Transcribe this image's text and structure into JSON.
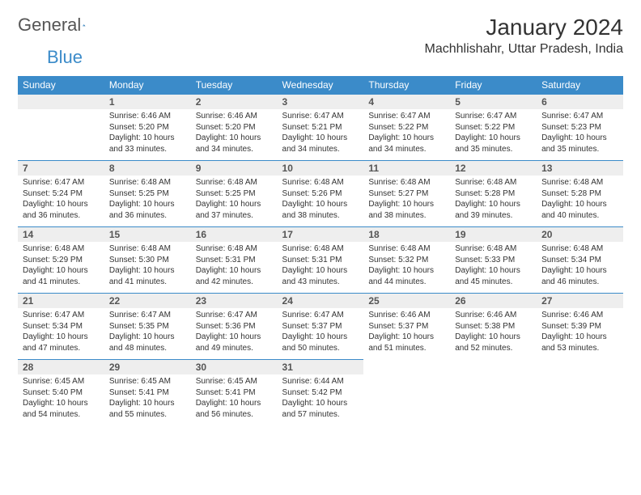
{
  "logo": {
    "text1": "General",
    "text2": "Blue"
  },
  "title": "January 2024",
  "location": "Machhlishahr, Uttar Pradesh, India",
  "colors": {
    "header_bg": "#3b8bc9",
    "header_text": "#ffffff",
    "daynum_bg": "#eeeeee",
    "daynum_text": "#555555",
    "body_text": "#333333",
    "page_bg": "#ffffff",
    "border": "#3b8bc9"
  },
  "typography": {
    "title_fontsize": 28,
    "location_fontsize": 16,
    "weekday_fontsize": 12,
    "daynum_fontsize": 12,
    "cell_fontsize": 10
  },
  "weekdays": [
    "Sunday",
    "Monday",
    "Tuesday",
    "Wednesday",
    "Thursday",
    "Friday",
    "Saturday"
  ],
  "first_weekday_index": 1,
  "days": [
    {
      "n": 1,
      "sunrise": "6:46 AM",
      "sunset": "5:20 PM",
      "daylight": "10 hours and 33 minutes."
    },
    {
      "n": 2,
      "sunrise": "6:46 AM",
      "sunset": "5:20 PM",
      "daylight": "10 hours and 34 minutes."
    },
    {
      "n": 3,
      "sunrise": "6:47 AM",
      "sunset": "5:21 PM",
      "daylight": "10 hours and 34 minutes."
    },
    {
      "n": 4,
      "sunrise": "6:47 AM",
      "sunset": "5:22 PM",
      "daylight": "10 hours and 34 minutes."
    },
    {
      "n": 5,
      "sunrise": "6:47 AM",
      "sunset": "5:22 PM",
      "daylight": "10 hours and 35 minutes."
    },
    {
      "n": 6,
      "sunrise": "6:47 AM",
      "sunset": "5:23 PM",
      "daylight": "10 hours and 35 minutes."
    },
    {
      "n": 7,
      "sunrise": "6:47 AM",
      "sunset": "5:24 PM",
      "daylight": "10 hours and 36 minutes."
    },
    {
      "n": 8,
      "sunrise": "6:48 AM",
      "sunset": "5:25 PM",
      "daylight": "10 hours and 36 minutes."
    },
    {
      "n": 9,
      "sunrise": "6:48 AM",
      "sunset": "5:25 PM",
      "daylight": "10 hours and 37 minutes."
    },
    {
      "n": 10,
      "sunrise": "6:48 AM",
      "sunset": "5:26 PM",
      "daylight": "10 hours and 38 minutes."
    },
    {
      "n": 11,
      "sunrise": "6:48 AM",
      "sunset": "5:27 PM",
      "daylight": "10 hours and 38 minutes."
    },
    {
      "n": 12,
      "sunrise": "6:48 AM",
      "sunset": "5:28 PM",
      "daylight": "10 hours and 39 minutes."
    },
    {
      "n": 13,
      "sunrise": "6:48 AM",
      "sunset": "5:28 PM",
      "daylight": "10 hours and 40 minutes."
    },
    {
      "n": 14,
      "sunrise": "6:48 AM",
      "sunset": "5:29 PM",
      "daylight": "10 hours and 41 minutes."
    },
    {
      "n": 15,
      "sunrise": "6:48 AM",
      "sunset": "5:30 PM",
      "daylight": "10 hours and 41 minutes."
    },
    {
      "n": 16,
      "sunrise": "6:48 AM",
      "sunset": "5:31 PM",
      "daylight": "10 hours and 42 minutes."
    },
    {
      "n": 17,
      "sunrise": "6:48 AM",
      "sunset": "5:31 PM",
      "daylight": "10 hours and 43 minutes."
    },
    {
      "n": 18,
      "sunrise": "6:48 AM",
      "sunset": "5:32 PM",
      "daylight": "10 hours and 44 minutes."
    },
    {
      "n": 19,
      "sunrise": "6:48 AM",
      "sunset": "5:33 PM",
      "daylight": "10 hours and 45 minutes."
    },
    {
      "n": 20,
      "sunrise": "6:48 AM",
      "sunset": "5:34 PM",
      "daylight": "10 hours and 46 minutes."
    },
    {
      "n": 21,
      "sunrise": "6:47 AM",
      "sunset": "5:34 PM",
      "daylight": "10 hours and 47 minutes."
    },
    {
      "n": 22,
      "sunrise": "6:47 AM",
      "sunset": "5:35 PM",
      "daylight": "10 hours and 48 minutes."
    },
    {
      "n": 23,
      "sunrise": "6:47 AM",
      "sunset": "5:36 PM",
      "daylight": "10 hours and 49 minutes."
    },
    {
      "n": 24,
      "sunrise": "6:47 AM",
      "sunset": "5:37 PM",
      "daylight": "10 hours and 50 minutes."
    },
    {
      "n": 25,
      "sunrise": "6:46 AM",
      "sunset": "5:37 PM",
      "daylight": "10 hours and 51 minutes."
    },
    {
      "n": 26,
      "sunrise": "6:46 AM",
      "sunset": "5:38 PM",
      "daylight": "10 hours and 52 minutes."
    },
    {
      "n": 27,
      "sunrise": "6:46 AM",
      "sunset": "5:39 PM",
      "daylight": "10 hours and 53 minutes."
    },
    {
      "n": 28,
      "sunrise": "6:45 AM",
      "sunset": "5:40 PM",
      "daylight": "10 hours and 54 minutes."
    },
    {
      "n": 29,
      "sunrise": "6:45 AM",
      "sunset": "5:41 PM",
      "daylight": "10 hours and 55 minutes."
    },
    {
      "n": 30,
      "sunrise": "6:45 AM",
      "sunset": "5:41 PM",
      "daylight": "10 hours and 56 minutes."
    },
    {
      "n": 31,
      "sunrise": "6:44 AM",
      "sunset": "5:42 PM",
      "daylight": "10 hours and 57 minutes."
    }
  ],
  "labels": {
    "sunrise": "Sunrise:",
    "sunset": "Sunset:",
    "daylight": "Daylight:"
  }
}
